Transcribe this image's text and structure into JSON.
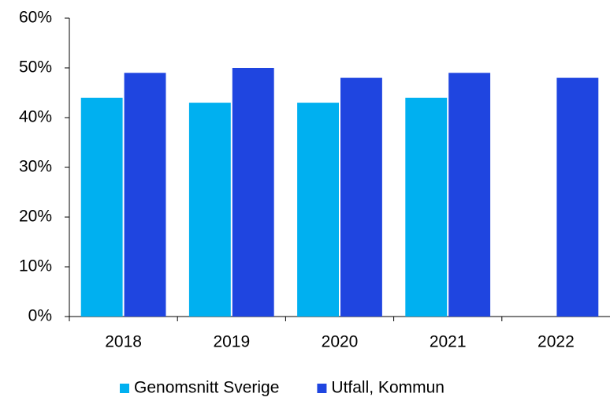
{
  "chart_data": {
    "type": "bar",
    "categories": [
      "2018",
      "2019",
      "2020",
      "2021",
      "2022"
    ],
    "series": [
      {
        "name": "Genomsnitt Sverige",
        "color": "#00b0f0",
        "values": [
          44,
          43,
          43,
          44,
          null
        ]
      },
      {
        "name": "Utfall, Kommun",
        "color": "#1f45e0",
        "values": [
          49,
          50,
          48,
          49,
          48
        ]
      }
    ],
    "ylim": [
      0,
      60
    ],
    "yticks": [
      {
        "value": 0,
        "label": "0%"
      },
      {
        "value": 10,
        "label": "10%"
      },
      {
        "value": 20,
        "label": "20%"
      },
      {
        "value": 30,
        "label": "30%"
      },
      {
        "value": 40,
        "label": "40%"
      },
      {
        "value": 50,
        "label": "50%"
      },
      {
        "value": 60,
        "label": "60%"
      }
    ],
    "grid": false,
    "legend": "bottom"
  }
}
